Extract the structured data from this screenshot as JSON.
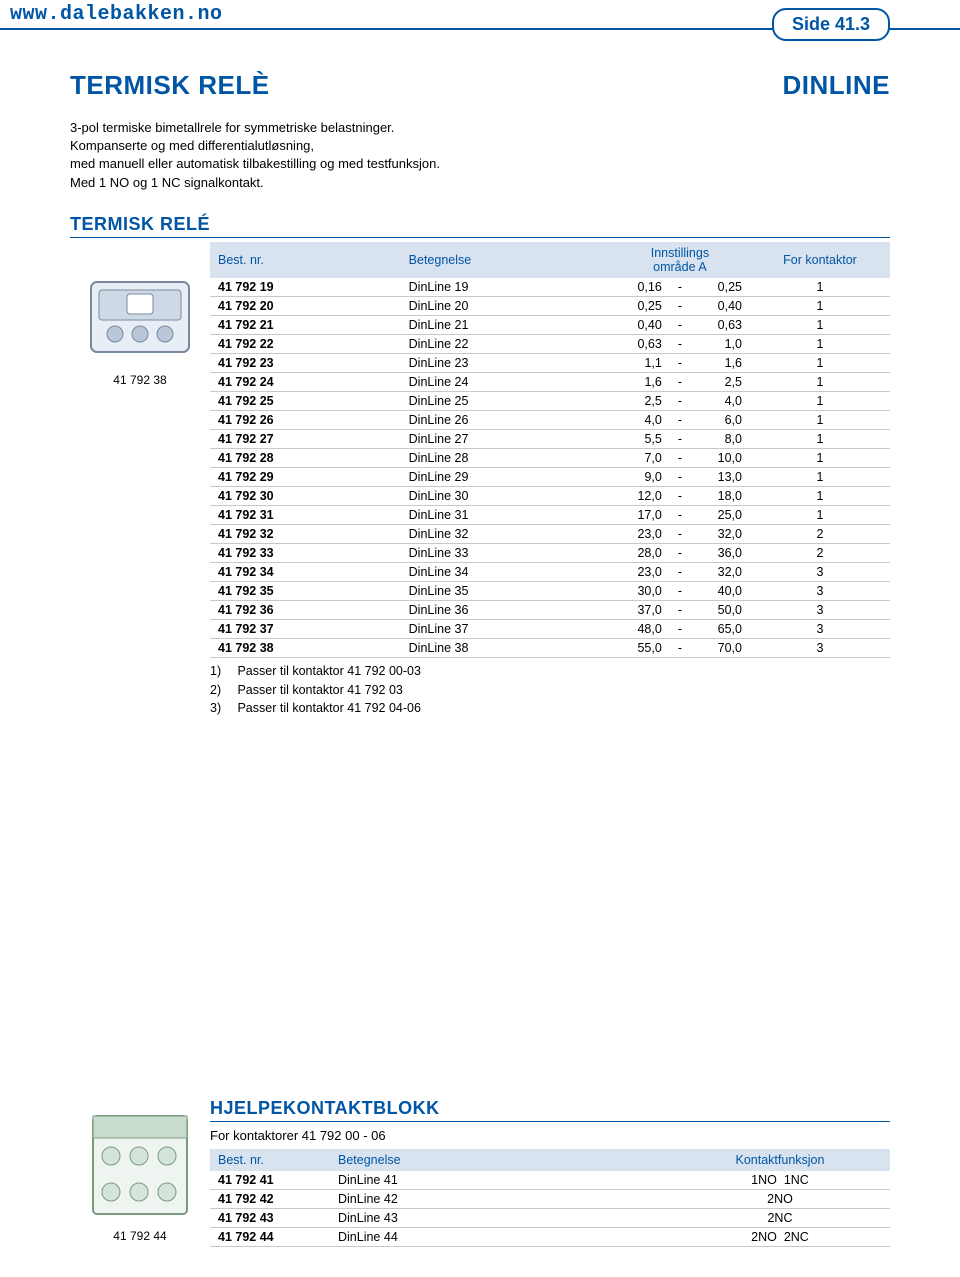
{
  "header": {
    "url": "www.dalebakken.no",
    "page_badge": "Side 41.3"
  },
  "colors": {
    "brand": "#0055a5",
    "header_bg": "#d9e3f0",
    "row_border": "#c8c8c8",
    "background": "#ffffff"
  },
  "title": {
    "left": "TERMISK RELÈ",
    "right": "DINLINE"
  },
  "intro": {
    "line1": "3-pol termiske bimetallrele for symmetriske belastninger.",
    "line2": "Kompanserte og med differentialutløsning,",
    "line3": "med manuell eller automatisk tilbakestilling og med testfunksjon.",
    "line4": "Med 1 NO og 1 NC signalkontakt."
  },
  "section1": {
    "title": "TERMISK RELÉ",
    "image_caption": "41 792 38",
    "columns": {
      "c1": "Best. nr.",
      "c2": "Betegnelse",
      "c3a": "Innstillings",
      "c3b": "område A",
      "c4": "For kontaktor"
    },
    "rows": [
      {
        "nr": "41 792 19",
        "bet": "DinLine 19",
        "lo": "0,16",
        "hi": "0,25",
        "k": "1"
      },
      {
        "nr": "41 792 20",
        "bet": "DinLine 20",
        "lo": "0,25",
        "hi": "0,40",
        "k": "1"
      },
      {
        "nr": "41 792 21",
        "bet": "DinLine 21",
        "lo": "0,40",
        "hi": "0,63",
        "k": "1"
      },
      {
        "nr": "41 792 22",
        "bet": "DinLine 22",
        "lo": "0,63",
        "hi": "1,0",
        "k": "1"
      },
      {
        "nr": "41 792 23",
        "bet": "DinLine 23",
        "lo": "1,1",
        "hi": "1,6",
        "k": "1"
      },
      {
        "nr": "41 792 24",
        "bet": "DinLine 24",
        "lo": "1,6",
        "hi": "2,5",
        "k": "1"
      },
      {
        "nr": "41 792 25",
        "bet": "DinLine 25",
        "lo": "2,5",
        "hi": "4,0",
        "k": "1"
      },
      {
        "nr": "41 792 26",
        "bet": "DinLine 26",
        "lo": "4,0",
        "hi": "6,0",
        "k": "1"
      },
      {
        "nr": "41 792 27",
        "bet": "DinLine 27",
        "lo": "5,5",
        "hi": "8,0",
        "k": "1"
      },
      {
        "nr": "41 792 28",
        "bet": "DinLine 28",
        "lo": "7,0",
        "hi": "10,0",
        "k": "1"
      },
      {
        "nr": "41 792 29",
        "bet": "DinLine 29",
        "lo": "9,0",
        "hi": "13,0",
        "k": "1"
      },
      {
        "nr": "41 792 30",
        "bet": "DinLine 30",
        "lo": "12,0",
        "hi": "18,0",
        "k": "1"
      },
      {
        "nr": "41 792 31",
        "bet": "DinLine 31",
        "lo": "17,0",
        "hi": "25,0",
        "k": "1"
      },
      {
        "nr": "41 792 32",
        "bet": "DinLine 32",
        "lo": "23,0",
        "hi": "32,0",
        "k": "2"
      },
      {
        "nr": "41 792 33",
        "bet": "DinLine 33",
        "lo": "28,0",
        "hi": "36,0",
        "k": "2"
      },
      {
        "nr": "41 792 34",
        "bet": "DinLine 34",
        "lo": "23,0",
        "hi": "32,0",
        "k": "3"
      },
      {
        "nr": "41 792 35",
        "bet": "DinLine 35",
        "lo": "30,0",
        "hi": "40,0",
        "k": "3"
      },
      {
        "nr": "41 792 36",
        "bet": "DinLine 36",
        "lo": "37,0",
        "hi": "50,0",
        "k": "3"
      },
      {
        "nr": "41 792 37",
        "bet": "DinLine 37",
        "lo": "48,0",
        "hi": "65,0",
        "k": "3"
      },
      {
        "nr": "41 792 38",
        "bet": "DinLine 38",
        "lo": "55,0",
        "hi": "70,0",
        "k": "3"
      }
    ],
    "notes": [
      {
        "n": "1)",
        "t": "Passer til kontaktor 41 792 00-03"
      },
      {
        "n": "2)",
        "t": "Passer til kontaktor 41 792 03"
      },
      {
        "n": "3)",
        "t": "Passer til kontaktor 41 792 04-06"
      }
    ]
  },
  "section2": {
    "title": "HJELPEKONTAKTBLOKK",
    "subtitle": "For kontaktorer 41 792 00 - 06",
    "image_caption": "41 792 44",
    "columns": {
      "c1": "Best. nr.",
      "c2": "Betegnelse",
      "c3": "Kontaktfunksjon"
    },
    "rows": [
      {
        "nr": "41 792 41",
        "bet": "DinLine 41",
        "kf": "1NO  1NC"
      },
      {
        "nr": "41 792 42",
        "bet": "DinLine 42",
        "kf": "2NO"
      },
      {
        "nr": "41 792 43",
        "bet": "DinLine 43",
        "kf": "2NC"
      },
      {
        "nr": "41 792 44",
        "bet": "DinLine 44",
        "kf": "2NO  2NC"
      }
    ]
  }
}
